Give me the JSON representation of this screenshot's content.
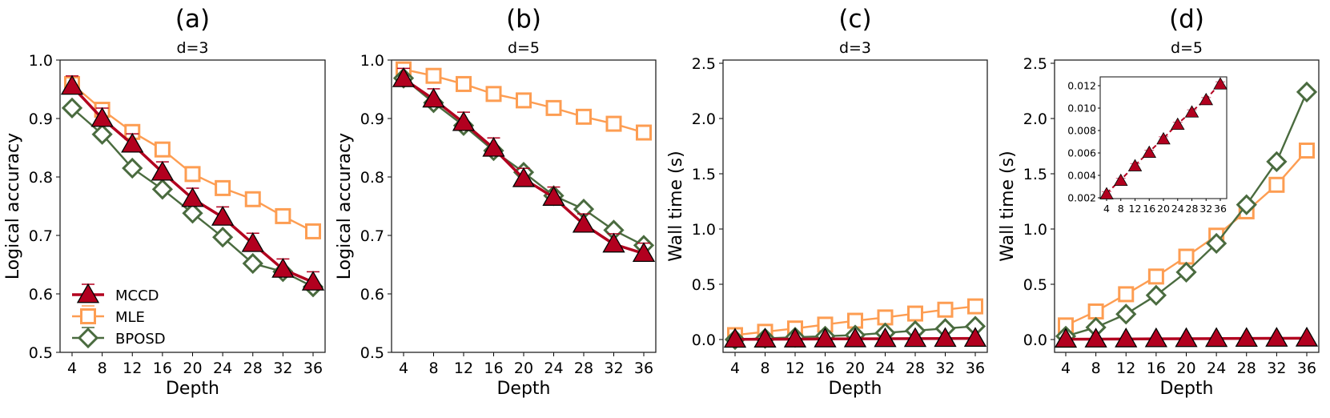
{
  "colors": {
    "MCCD": "#b2001f",
    "MLE": "#fd9d52",
    "BPOSD": "#4a6b3f"
  },
  "legend": {
    "placement": "lower-left",
    "panel": 0,
    "entries": [
      "MCCD",
      "MLE",
      "BPOSD"
    ]
  },
  "chart_data": [
    {
      "type": "line",
      "panel_label": "(a)",
      "title": "d=3",
      "xlabel": "Depth",
      "ylabel": "Logical accuracy",
      "x": [
        4,
        8,
        12,
        16,
        20,
        24,
        28,
        32,
        36
      ],
      "xticks": [
        "4",
        "8",
        "12",
        "16",
        "20",
        "24",
        "28",
        "32",
        "36"
      ],
      "ylim": [
        0.5,
        1.0
      ],
      "yticks": [
        "0.5",
        "0.6",
        "0.7",
        "0.8",
        "0.9",
        "1.0"
      ],
      "ytick_values": [
        0.5,
        0.6,
        0.7,
        0.8,
        0.9,
        1.0
      ],
      "grid": false,
      "series": [
        {
          "name": "MLE",
          "marker": "square",
          "values": [
            0.959,
            0.915,
            0.877,
            0.847,
            0.805,
            0.781,
            0.762,
            0.733,
            0.707
          ]
        },
        {
          "name": "BPOSD",
          "marker": "diamond",
          "values": [
            0.918,
            0.873,
            0.815,
            0.779,
            0.738,
            0.697,
            0.652,
            0.638,
            0.612
          ]
        },
        {
          "name": "MCCD",
          "marker": "triangle",
          "values": [
            0.955,
            0.9,
            0.856,
            0.808,
            0.763,
            0.731,
            0.686,
            0.642,
            0.62
          ]
        }
      ]
    },
    {
      "type": "line",
      "panel_label": "(b)",
      "title": "d=5",
      "xlabel": "Depth",
      "ylabel": "Logical accuracy",
      "x": [
        4,
        8,
        12,
        16,
        20,
        24,
        28,
        32,
        36
      ],
      "xticks": [
        "4",
        "8",
        "12",
        "16",
        "20",
        "24",
        "28",
        "32",
        "36"
      ],
      "ylim": [
        0.5,
        1.0
      ],
      "yticks": [
        "0.5",
        "0.6",
        "0.7",
        "0.8",
        "0.9",
        "1.0"
      ],
      "ytick_values": [
        0.5,
        0.6,
        0.7,
        0.8,
        0.9,
        1.0
      ],
      "grid": false,
      "series": [
        {
          "name": "MLE",
          "marker": "square",
          "values": [
            0.984,
            0.973,
            0.959,
            0.942,
            0.931,
            0.918,
            0.903,
            0.891,
            0.876
          ]
        },
        {
          "name": "BPOSD",
          "marker": "diamond",
          "values": [
            0.969,
            0.927,
            0.888,
            0.845,
            0.808,
            0.768,
            0.745,
            0.709,
            0.683
          ]
        },
        {
          "name": "MCCD",
          "marker": "triangle",
          "values": [
            0.968,
            0.933,
            0.893,
            0.849,
            0.797,
            0.765,
            0.719,
            0.685,
            0.669
          ]
        }
      ]
    },
    {
      "type": "line",
      "panel_label": "(c)",
      "title": "d=3",
      "xlabel": "Depth",
      "ylabel": "Wall time (s)",
      "x": [
        4,
        8,
        12,
        16,
        20,
        24,
        28,
        32,
        36
      ],
      "xticks": [
        "4",
        "8",
        "12",
        "16",
        "20",
        "24",
        "28",
        "32",
        "36"
      ],
      "ylim": [
        -0.1,
        2.55
      ],
      "yticks": [
        "0.0",
        "0.5",
        "1.0",
        "1.5",
        "2.0",
        "2.5"
      ],
      "ytick_values": [
        0.0,
        0.5,
        1.0,
        1.5,
        2.0,
        2.5
      ],
      "grid": false,
      "series": [
        {
          "name": "MLE",
          "marker": "square",
          "values": [
            0.04,
            0.07,
            0.1,
            0.135,
            0.17,
            0.2,
            0.235,
            0.27,
            0.3
          ]
        },
        {
          "name": "BPOSD",
          "marker": "diamond",
          "values": [
            0.0,
            0.01,
            0.02,
            0.03,
            0.04,
            0.06,
            0.08,
            0.1,
            0.12
          ]
        },
        {
          "name": "MCCD",
          "marker": "triangle",
          "values": [
            0.002,
            0.003,
            0.004,
            0.005,
            0.006,
            0.007,
            0.008,
            0.009,
            0.01
          ]
        }
      ]
    },
    {
      "type": "line",
      "panel_label": "(d)",
      "title": "d=5",
      "xlabel": "Depth",
      "ylabel": "Wall time (s)",
      "x": [
        4,
        8,
        12,
        16,
        20,
        24,
        28,
        32,
        36
      ],
      "xticks": [
        "4",
        "8",
        "12",
        "16",
        "20",
        "24",
        "28",
        "32",
        "36"
      ],
      "ylim": [
        -0.1,
        2.55
      ],
      "yticks": [
        "0.0",
        "0.5",
        "1.0",
        "1.5",
        "2.0",
        "2.5"
      ],
      "ytick_values": [
        0.0,
        0.5,
        1.0,
        1.5,
        2.0,
        2.5
      ],
      "grid": false,
      "series": [
        {
          "name": "MLE",
          "marker": "square",
          "values": [
            0.128,
            0.254,
            0.41,
            0.57,
            0.75,
            0.94,
            1.16,
            1.4,
            1.71
          ]
        },
        {
          "name": "BPOSD",
          "marker": "diamond",
          "values": [
            0.03,
            0.11,
            0.23,
            0.4,
            0.61,
            0.87,
            1.22,
            1.61,
            2.24
          ]
        },
        {
          "name": "MCCD",
          "marker": "triangle",
          "values": [
            0.0024,
            0.0036,
            0.0049,
            0.0061,
            0.0073,
            0.0086,
            0.0097,
            0.0108,
            0.0122
          ]
        }
      ],
      "inset": {
        "type": "line",
        "series_name": "MCCD",
        "linestyle": "dashed",
        "x": [
          4,
          8,
          12,
          16,
          20,
          24,
          28,
          32,
          36
        ],
        "xticks": [
          "4",
          "8",
          "12",
          "16",
          "20",
          "24",
          "28",
          "32",
          "36"
        ],
        "values": [
          0.0024,
          0.0036,
          0.0049,
          0.0061,
          0.0073,
          0.0086,
          0.0097,
          0.0108,
          0.0122
        ],
        "ylim": [
          0.002,
          0.0128
        ],
        "yticks": [
          "0.002",
          "0.004",
          "0.006",
          "0.008",
          "0.010",
          "0.012"
        ],
        "ytick_values": [
          0.002,
          0.004,
          0.006,
          0.008,
          0.01,
          0.012
        ]
      }
    }
  ]
}
